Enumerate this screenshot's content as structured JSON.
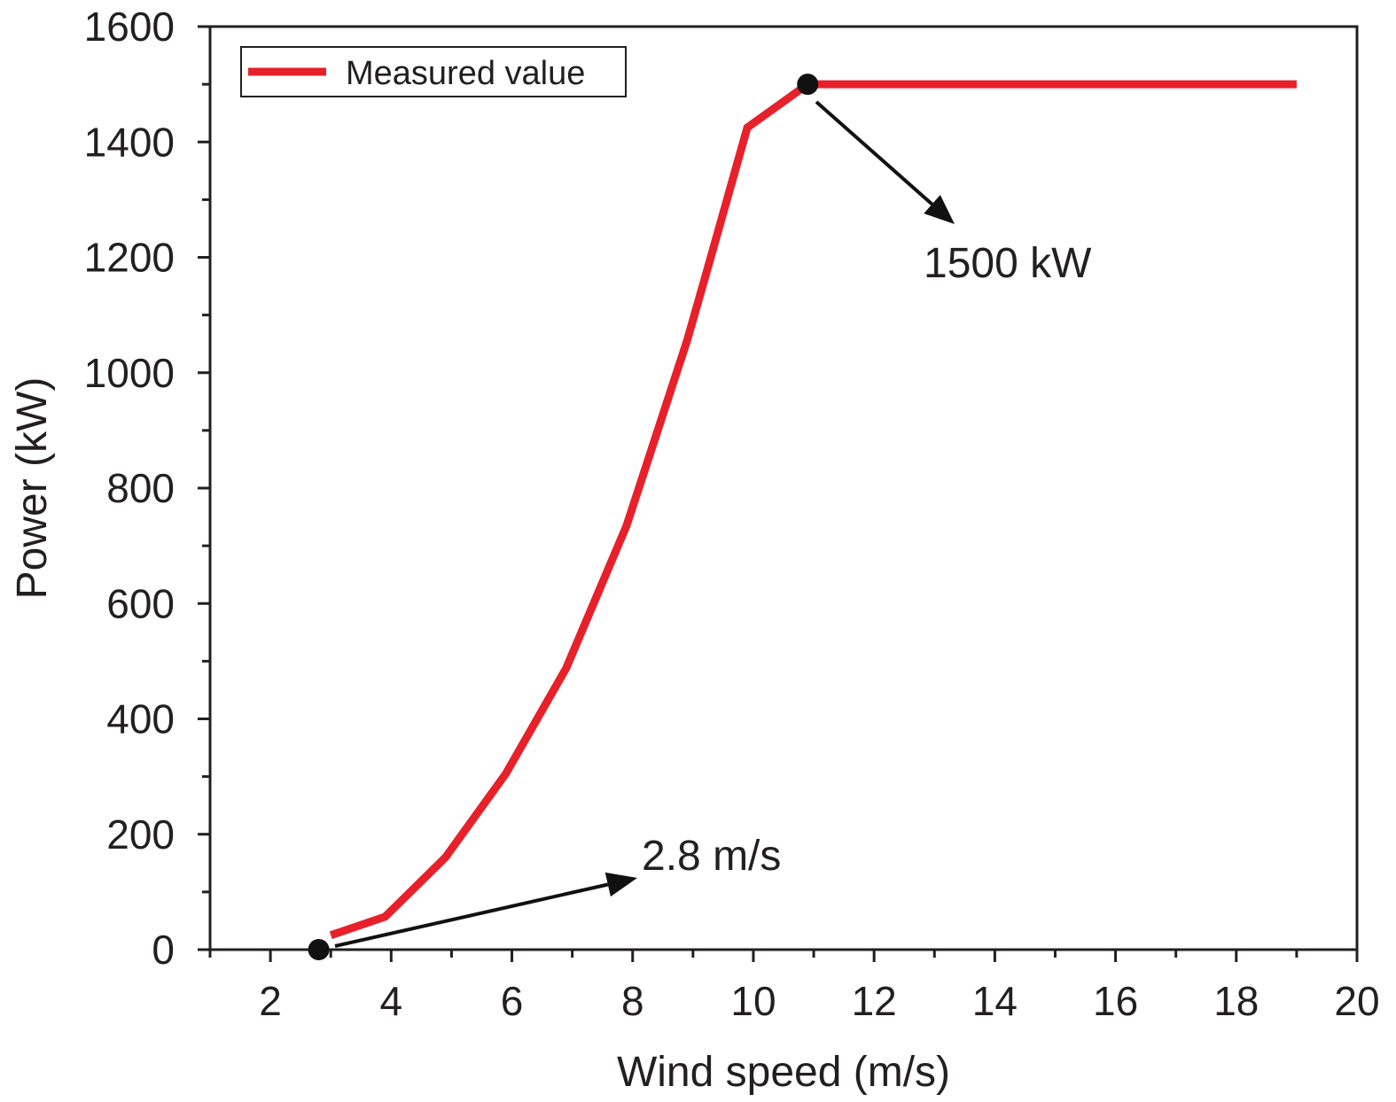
{
  "chart_data": {
    "type": "line",
    "title": "",
    "xlabel": "Wind speed (m/s)",
    "ylabel": "Power (kW)",
    "xlim": [
      1,
      20
    ],
    "ylim": [
      0,
      1600
    ],
    "xticks": [
      2,
      4,
      6,
      8,
      10,
      12,
      14,
      16,
      18,
      20
    ],
    "yticks": [
      0,
      200,
      400,
      600,
      800,
      1000,
      1200,
      1400,
      1600
    ],
    "grid": false,
    "legend": {
      "position": "top-left",
      "entries": [
        "Measured value"
      ]
    },
    "series": [
      {
        "name": "Measured value",
        "color": "#e8202a",
        "x": [
          3.0,
          3.9,
          4.9,
          5.9,
          6.9,
          7.9,
          8.9,
          9.2,
          9.9,
          10.9,
          19.0
        ],
        "y": [
          25,
          57,
          160,
          305,
          488,
          735,
          1055,
          1165,
          1425,
          1500,
          1500
        ]
      }
    ],
    "markers": [
      {
        "x": 2.8,
        "y": 0
      },
      {
        "x": 10.9,
        "y": 1500
      }
    ],
    "annotations": [
      {
        "text": "1500 kW",
        "target": {
          "x": 10.9,
          "y": 1500
        }
      },
      {
        "text": "2.8 m/s",
        "target": {
          "x": 2.8,
          "y": 0
        }
      }
    ]
  }
}
